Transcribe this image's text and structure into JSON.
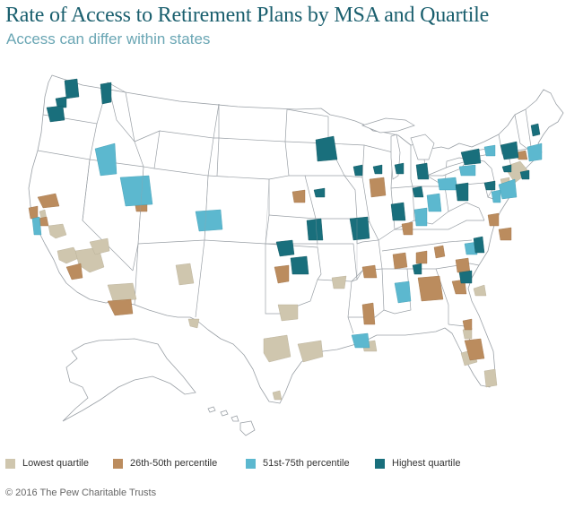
{
  "title": "Rate of Access to Retirement Plans by MSA and Quartile",
  "subtitle": "Access can differ within states",
  "legend": [
    {
      "key": "q1",
      "label": "Lowest quartile",
      "color": "#cfc6ae"
    },
    {
      "key": "q2",
      "label": "26th-50th percentile",
      "color": "#bb8c5e"
    },
    {
      "key": "q3",
      "label": "51st-75th percentile",
      "color": "#5cb8cf"
    },
    {
      "key": "q4",
      "label": "Highest quartile",
      "color": "#196f7c"
    }
  ],
  "colors": {
    "state_fill": "#ffffff",
    "state_border": "#9aa0a6",
    "water": "#ffffff"
  },
  "copyright": "© 2016 The Pew Charitable Trusts"
}
